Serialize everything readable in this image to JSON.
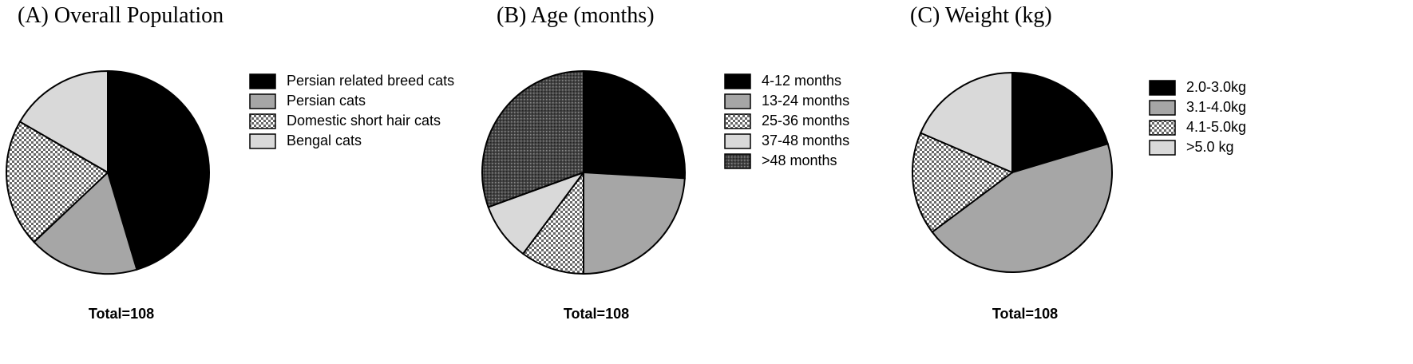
{
  "chart_data": [
    {
      "type": "pie",
      "title": "(A)   Overall Population",
      "note": "Total=108",
      "categories": [
        "Persian related breed cats",
        "Persian cats",
        "Domestic short hair cats",
        "Bengal cats"
      ],
      "values": [
        49,
        19,
        22,
        18
      ],
      "colors": [
        "#000000",
        "#a6a6a6",
        "checker",
        "#d9d9d9"
      ]
    },
    {
      "type": "pie",
      "title": "(B)   Age (months)",
      "note": "Total=108",
      "categories": [
        "4-12 months",
        "13-24 months",
        "25-36 months",
        "37-48 months",
        ">48 months"
      ],
      "values": [
        28,
        26,
        11,
        10,
        33
      ],
      "colors": [
        "#000000",
        "#a6a6a6",
        "checker",
        "#d9d9d9",
        "darkdots"
      ]
    },
    {
      "type": "pie",
      "title": "(C)   Weight (kg)",
      "note": "Total=108",
      "categories": [
        "2.0-3.0kg",
        "3.1-4.0kg",
        "4.1-5.0kg",
        ">5.0 kg"
      ],
      "values": [
        22,
        48,
        18,
        20
      ],
      "colors": [
        "#000000",
        "#a6a6a6",
        "checker",
        "#d9d9d9"
      ]
    }
  ]
}
